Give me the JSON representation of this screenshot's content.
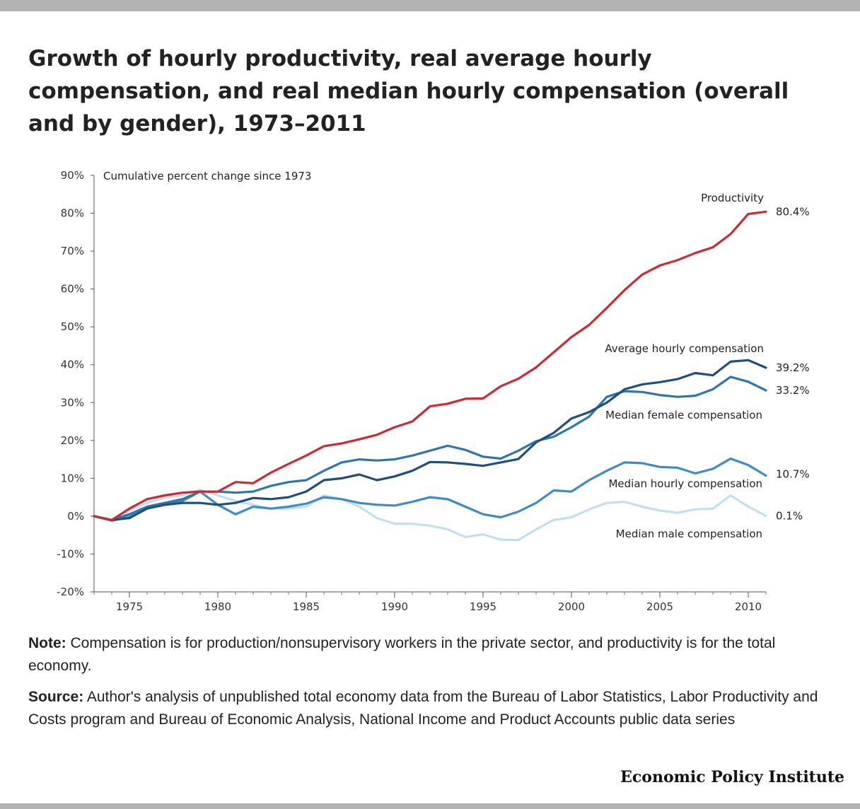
{
  "title": "Growth of hourly productivity, real average hourly compensation, and real median hourly compensation (overall and by gender), 1973–2011",
  "note": {
    "label": "Note:",
    "text": "Compensation is for production/nonsupervisory workers in the private sector, and productivity is for the total economy."
  },
  "source": {
    "label": "Source:",
    "text": "Author's analysis of unpublished total economy data from the Bureau of Labor Statistics, Labor Productivity and Costs program and Bureau of Economic Analysis, National Income and Product Accounts public data series"
  },
  "credit": "Economic Policy Institute",
  "chart_data": {
    "type": "line",
    "ylabel": "Cumulative percent change since 1973",
    "ylim": [
      -20,
      90
    ],
    "yticks": [
      90,
      80,
      70,
      60,
      50,
      40,
      30,
      20,
      10,
      0,
      -10,
      -20
    ],
    "ytick_suffix": "%",
    "xlim": [
      1973,
      2011
    ],
    "xticks": [
      1975,
      1980,
      1985,
      1990,
      1995,
      2000,
      2005,
      2010
    ],
    "grid": false,
    "legend": "none (direct labels)",
    "x": [
      1973,
      1974,
      1975,
      1976,
      1977,
      1978,
      1979,
      1980,
      1981,
      1982,
      1983,
      1984,
      1985,
      1986,
      1987,
      1988,
      1989,
      1990,
      1991,
      1992,
      1993,
      1994,
      1995,
      1996,
      1997,
      1998,
      1999,
      2000,
      2001,
      2002,
      2003,
      2004,
      2005,
      2006,
      2007,
      2008,
      2009,
      2010,
      2011
    ],
    "series": [
      {
        "name": "Median male compensation",
        "color": "#c2dff1",
        "end_label": "0.1%",
        "values": [
          0,
          -1,
          1.5,
          3.5,
          5,
          5.5,
          7,
          5.5,
          4,
          3,
          2,
          2,
          2.5,
          5.5,
          4.5,
          2.5,
          -0.5,
          -2,
          -2,
          -2.5,
          -3.5,
          -5.5,
          -4.8,
          -6.2,
          -6.3,
          -3.5,
          -1,
          -0.3,
          1.8,
          3.5,
          3.8,
          2.5,
          1.5,
          0.9,
          1.8,
          2,
          5.5,
          2.5,
          0.1
        ]
      },
      {
        "name": "Median hourly compensation",
        "color": "#3d8cc7",
        "end_label": "10.7%",
        "values": [
          0,
          -1.2,
          -0.2,
          2.5,
          3.5,
          4,
          6.5,
          3,
          0.5,
          2.5,
          2,
          2.5,
          3.3,
          5,
          4.5,
          3.5,
          3,
          2.8,
          3.8,
          5,
          4.5,
          2.5,
          0.5,
          -0.3,
          1.2,
          3.5,
          6.8,
          6.5,
          9.5,
          12,
          14.2,
          14,
          13,
          12.8,
          11.3,
          12.5,
          15.2,
          13.5,
          10.7
        ]
      },
      {
        "name": "Median female compensation",
        "color": "#2f76ad",
        "end_label": "33.2%",
        "values": [
          0,
          -1,
          0.5,
          2.5,
          3.5,
          4.5,
          6.5,
          6.5,
          6.2,
          6.5,
          8,
          9,
          9.5,
          12,
          14.2,
          15,
          14.7,
          15,
          16,
          17.3,
          18.6,
          17.5,
          15.7,
          15.2,
          17.3,
          19.8,
          21,
          23.5,
          26.3,
          31.5,
          33,
          32.8,
          32,
          31.5,
          31.8,
          33.5,
          36.8,
          35.5,
          33.2
        ]
      },
      {
        "name": "Average hourly compensation",
        "color": "#1f4f7a",
        "end_label": "39.2%",
        "values": [
          0,
          -1,
          -0.5,
          2,
          3,
          3.5,
          3.5,
          3,
          3.5,
          4.8,
          4.5,
          5,
          6.5,
          9.5,
          10,
          11,
          9.5,
          10.5,
          12,
          14.3,
          14.2,
          13.8,
          13.3,
          14.2,
          15.1,
          19.5,
          22,
          25.8,
          27.5,
          30,
          33.5,
          34.8,
          35.4,
          36.2,
          37.8,
          37.2,
          40.8,
          41.2,
          39.2
        ]
      },
      {
        "name": "Productivity",
        "color": "#cc2b36",
        "end_label": "80.4%",
        "values": [
          0,
          -1,
          2,
          4.5,
          5.5,
          6.2,
          6.5,
          6.5,
          9,
          8.7,
          11.5,
          13.8,
          16,
          18.5,
          19.2,
          20.3,
          21.5,
          23.5,
          25,
          29,
          29.7,
          31,
          31.1,
          34.3,
          36.3,
          39.3,
          43.3,
          47.3,
          50.5,
          55,
          59.7,
          63.8,
          66.2,
          67.6,
          69.5,
          71,
          74.5,
          79.8,
          80.4
        ]
      }
    ],
    "annotations": [
      {
        "text": "Productivity",
        "series": "Productivity"
      },
      {
        "text": "Average hourly compensation",
        "series": "Average hourly compensation"
      },
      {
        "text": "Median female compensation",
        "series": "Median female compensation"
      },
      {
        "text": "Median hourly compensation",
        "series": "Median hourly compensation"
      },
      {
        "text": "Median male compensation",
        "series": "Median male compensation"
      }
    ]
  }
}
